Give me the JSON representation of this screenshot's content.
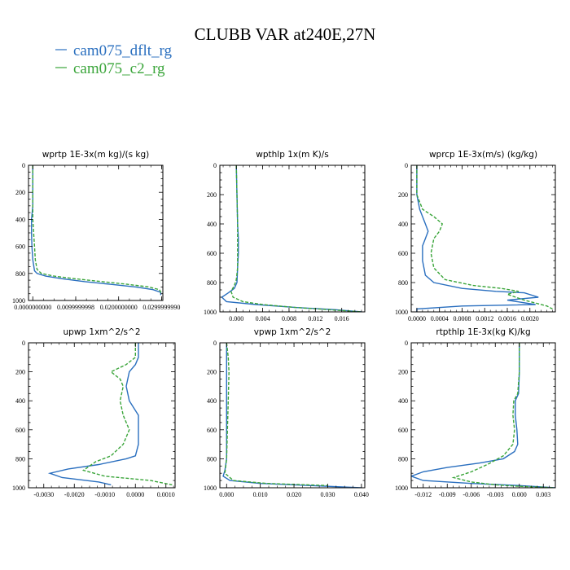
{
  "title": "CLUBB VAR at240E,27N",
  "legend": [
    {
      "label": "cam075_dflt_rg",
      "color": "#2a6fbf",
      "dash": "solid"
    },
    {
      "label": "cam075_c2_rg",
      "color": "#3aa53a",
      "dash": "dashed"
    }
  ],
  "chart_data": [
    {
      "type": "line",
      "title": "wprtp  1E-3x(m kg)/(s kg)",
      "xlim": [
        -0.001,
        0.0303
      ],
      "ylim": [
        1000,
        0
      ],
      "xticks": [
        0.0,
        0.01,
        0.02,
        0.03
      ],
      "xtick_labels": [
        "0.0000000000",
        "0.0099999998",
        "0.0200000000",
        "0.0299999990"
      ],
      "yticks": [
        0,
        200,
        400,
        600,
        800,
        1000
      ],
      "ytick_labels": [
        "0",
        "200",
        "400",
        "600",
        "800",
        "1000"
      ],
      "series": [
        {
          "name": "cam075_dflt_rg",
          "x": [
            0.0,
            0.0,
            -0.0003,
            -0.0003,
            -0.0002,
            0.0,
            0.0004,
            0.001,
            0.003,
            0.007,
            0.012,
            0.018,
            0.024,
            0.028,
            0.0298,
            0.0298
          ],
          "y": [
            0,
            300,
            400,
            500,
            600,
            700,
            780,
            800,
            820,
            840,
            860,
            880,
            900,
            920,
            940,
            960
          ]
        },
        {
          "name": "cam075_c2_rg",
          "x": [
            0.0,
            0.0,
            0.0,
            0.0002,
            0.0004,
            0.0006,
            0.001,
            0.002,
            0.005,
            0.01,
            0.016,
            0.022,
            0.027,
            0.0295,
            0.03
          ],
          "y": [
            0,
            300,
            400,
            500,
            600,
            700,
            770,
            800,
            820,
            840,
            860,
            880,
            900,
            920,
            950
          ]
        }
      ]
    },
    {
      "type": "line",
      "title": "wpthlp  1x(m K)/s",
      "xlim": [
        -0.0025,
        0.0195
      ],
      "ylim": [
        1000,
        0
      ],
      "xticks": [
        0.0,
        0.004,
        0.008,
        0.012,
        0.016
      ],
      "xtick_labels": [
        "0.000",
        "0.004",
        "0.008",
        "0.012",
        "0.016"
      ],
      "yticks": [
        0,
        200,
        400,
        600,
        800,
        1000
      ],
      "ytick_labels": [
        "0",
        "200",
        "400",
        "600",
        "800",
        "1000"
      ],
      "series": [
        {
          "name": "cam075_dflt_rg",
          "x": [
            0.0,
            0.0001,
            0.0002,
            0.0003,
            0.0003,
            0.0002,
            0.0001,
            -0.0003,
            -0.0012,
            -0.0022,
            -0.0015,
            0.003,
            0.009,
            0.015,
            0.019
          ],
          "y": [
            0,
            200,
            400,
            500,
            600,
            700,
            800,
            840,
            870,
            900,
            930,
            950,
            970,
            985,
            1000
          ]
        },
        {
          "name": "cam075_c2_rg",
          "x": [
            0.0,
            0.0001,
            0.0002,
            0.0002,
            0.0002,
            0.0,
            -0.0003,
            -0.0008,
            -0.0005,
            0.001,
            0.004,
            0.009,
            0.014,
            0.019
          ],
          "y": [
            0,
            200,
            400,
            600,
            700,
            780,
            820,
            860,
            900,
            930,
            950,
            970,
            985,
            1000
          ]
        }
      ]
    },
    {
      "type": "line",
      "title": "wprcp  1E-3x(m/s) (kg/kg)",
      "xlim": [
        -0.0001,
        0.00245
      ],
      "ylim": [
        1000,
        0
      ],
      "xticks": [
        0.0,
        0.0004,
        0.0008,
        0.0012,
        0.0016,
        0.002
      ],
      "xtick_labels": [
        "0.0000",
        "0.0004",
        "0.0008",
        "0.0012",
        "0.0016",
        "0.0020"
      ],
      "yticks": [
        0,
        200,
        400,
        600,
        800,
        1000
      ],
      "ytick_labels": [
        "0",
        "200",
        "400",
        "600",
        "800",
        "1000"
      ],
      "series": [
        {
          "name": "cam075_dflt_rg",
          "x": [
            0.0,
            0.0,
            5e-05,
            0.00015,
            0.0002,
            0.00015,
            0.0001,
            0.0001,
            0.00015,
            0.0003,
            0.0008,
            0.0014,
            0.0019,
            0.00215,
            0.0016,
            0.0021,
            0.0008,
            0.0,
            0.0
          ],
          "y": [
            0,
            200,
            300,
            400,
            450,
            500,
            550,
            650,
            750,
            800,
            840,
            860,
            870,
            900,
            920,
            950,
            960,
            980,
            1000
          ]
        },
        {
          "name": "cam075_c2_rg",
          "x": [
            0.0,
            0.0,
            0.0001,
            0.0003,
            0.00045,
            0.0004,
            0.0003,
            0.00025,
            0.0003,
            0.0005,
            0.001,
            0.0015,
            0.0018,
            0.0016,
            0.0019,
            0.0023,
            0.0024
          ],
          "y": [
            0,
            200,
            300,
            350,
            400,
            450,
            500,
            600,
            700,
            780,
            820,
            840,
            860,
            880,
            920,
            960,
            980
          ]
        }
      ]
    },
    {
      "type": "line",
      "title": "upwp  1xm^2/s^2",
      "xlim": [
        -0.0035,
        0.0013
      ],
      "ylim": [
        1000,
        0
      ],
      "xticks": [
        -0.003,
        -0.002,
        -0.001,
        0.0,
        0.001
      ],
      "xtick_labels": [
        "-0.0030",
        "-0.0020",
        "-0.0010",
        "0.0000",
        "0.0010"
      ],
      "yticks": [
        0,
        200,
        400,
        600,
        800,
        1000
      ],
      "ytick_labels": [
        "0",
        "200",
        "400",
        "600",
        "800",
        "1000"
      ],
      "series": [
        {
          "name": "cam075_dflt_rg",
          "x": [
            0.0001,
            0.0001,
            0.0,
            -0.0002,
            -0.0003,
            -0.0002,
            0.0001,
            0.0001,
            0.0,
            -0.0003,
            -0.0012,
            -0.0022,
            -0.0028,
            -0.0024,
            -0.0012,
            -0.0008
          ],
          "y": [
            0,
            100,
            150,
            200,
            300,
            400,
            500,
            700,
            780,
            800,
            840,
            870,
            900,
            930,
            960,
            980
          ]
        },
        {
          "name": "cam075_c2_rg",
          "x": [
            0.0,
            0.0,
            -0.0003,
            -0.0008,
            -0.0005,
            -0.0004,
            -0.0005,
            -0.0004,
            -0.0002,
            -0.0004,
            -0.0008,
            -0.0013,
            -0.0017,
            -0.001,
            0.0005,
            0.0012
          ],
          "y": [
            0,
            100,
            150,
            200,
            250,
            300,
            400,
            500,
            600,
            700,
            780,
            820,
            880,
            920,
            950,
            980
          ]
        }
      ]
    },
    {
      "type": "line",
      "title": "vpwp  1xm^2/s^2",
      "xlim": [
        -0.002,
        0.041
      ],
      "ylim": [
        1000,
        0
      ],
      "xticks": [
        0.0,
        0.01,
        0.02,
        0.03,
        0.04
      ],
      "xtick_labels": [
        "0.000",
        "0.010",
        "0.020",
        "0.030",
        "0.040"
      ],
      "yticks": [
        0,
        200,
        400,
        600,
        800,
        1000
      ],
      "ytick_labels": [
        "0",
        "200",
        "400",
        "600",
        "800",
        "1000"
      ],
      "series": [
        {
          "name": "cam075_dflt_rg",
          "x": [
            0.0,
            0.0,
            0.0,
            -0.0005,
            -0.001,
            0.001,
            0.01,
            0.025,
            0.04
          ],
          "y": [
            0,
            400,
            800,
            880,
            920,
            950,
            970,
            985,
            1000
          ]
        },
        {
          "name": "cam075_c2_rg",
          "x": [
            0.0,
            0.0005,
            0.0007,
            0.0005,
            0.0,
            -0.0005,
            0.002,
            0.012,
            0.03
          ],
          "y": [
            0,
            100,
            200,
            400,
            800,
            900,
            950,
            970,
            985
          ]
        }
      ]
    },
    {
      "type": "line",
      "title": "rtpthlp  1E-3x(kg K)/kg",
      "xlim": [
        -0.0135,
        0.0045
      ],
      "ylim": [
        1000,
        0
      ],
      "xticks": [
        -0.012,
        -0.009,
        -0.006,
        -0.003,
        0.0,
        0.003
      ],
      "xtick_labels": [
        "-0.012",
        "-0.009",
        "-0.006",
        "-0.003",
        "0.000",
        "0.003"
      ],
      "yticks": [
        0,
        200,
        400,
        600,
        800,
        1000
      ],
      "ytick_labels": [
        "0",
        "200",
        "400",
        "600",
        "800",
        "1000"
      ],
      "series": [
        {
          "name": "cam075_dflt_rg",
          "x": [
            0.0,
            0.0,
            -0.0001,
            -0.0005,
            -0.0005,
            -0.0003,
            -0.0002,
            -0.0006,
            -0.002,
            -0.005,
            -0.009,
            -0.012,
            -0.0135,
            -0.012,
            -0.006,
            0.0,
            0.0045
          ],
          "y": [
            0,
            200,
            350,
            400,
            500,
            600,
            700,
            750,
            800,
            830,
            860,
            890,
            920,
            950,
            970,
            985,
            1000
          ]
        },
        {
          "name": "cam075_c2_rg",
          "x": [
            0.0,
            0.0,
            -0.0002,
            -0.0007,
            -0.0008,
            -0.0006,
            -0.0008,
            -0.002,
            -0.004,
            -0.006,
            -0.0082,
            -0.006,
            -0.003,
            0.0,
            0.0045
          ],
          "y": [
            0,
            200,
            350,
            400,
            500,
            600,
            700,
            780,
            840,
            890,
            930,
            960,
            980,
            990,
            1000
          ]
        }
      ]
    }
  ]
}
